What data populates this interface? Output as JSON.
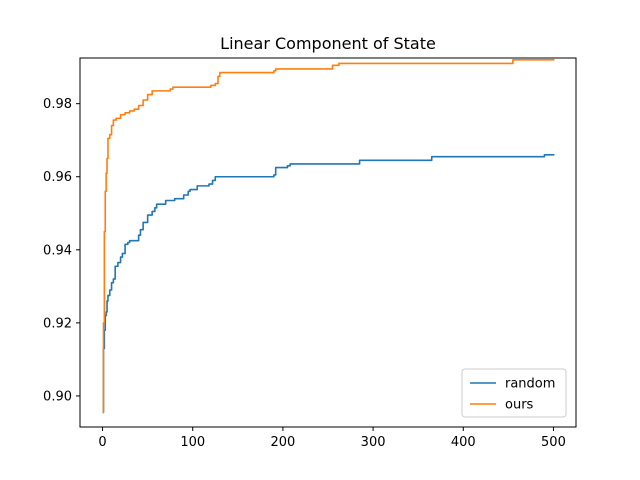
{
  "chart_data": {
    "type": "line",
    "title": "Linear Component of State",
    "xlabel": "",
    "ylabel": "",
    "xlim": [
      -25,
      525
    ],
    "ylim": [
      0.8915,
      0.9925
    ],
    "xticks": [
      0,
      100,
      200,
      300,
      400,
      500
    ],
    "yticks": [
      0.9,
      0.92,
      0.94,
      0.96,
      0.98
    ],
    "xtick_labels": [
      "0",
      "100",
      "200",
      "300",
      "400",
      "500"
    ],
    "ytick_labels": [
      "0.90",
      "0.92",
      "0.94",
      "0.96",
      "0.98"
    ],
    "grid": false,
    "legend_position": "lower-right",
    "series": [
      {
        "name": "random",
        "color": "#1f77b4",
        "points": [
          [
            0,
            0.8955
          ],
          [
            1,
            0.913
          ],
          [
            2,
            0.918
          ],
          [
            3,
            0.922
          ],
          [
            4,
            0.923
          ],
          [
            5,
            0.926
          ],
          [
            6,
            0.9275
          ],
          [
            8,
            0.929
          ],
          [
            10,
            0.931
          ],
          [
            12,
            0.932
          ],
          [
            14,
            0.9355
          ],
          [
            17,
            0.9365
          ],
          [
            20,
            0.938
          ],
          [
            22,
            0.939
          ],
          [
            25,
            0.9415
          ],
          [
            28,
            0.942
          ],
          [
            30,
            0.9425
          ],
          [
            40,
            0.944
          ],
          [
            42,
            0.9455
          ],
          [
            45,
            0.9475
          ],
          [
            50,
            0.9495
          ],
          [
            55,
            0.9505
          ],
          [
            58,
            0.9515
          ],
          [
            60,
            0.9525
          ],
          [
            70,
            0.9535
          ],
          [
            80,
            0.954
          ],
          [
            90,
            0.955
          ],
          [
            95,
            0.956
          ],
          [
            97,
            0.9565
          ],
          [
            105,
            0.9575
          ],
          [
            118,
            0.958
          ],
          [
            122,
            0.959
          ],
          [
            125,
            0.96
          ],
          [
            190,
            0.9605
          ],
          [
            192,
            0.9625
          ],
          [
            205,
            0.963
          ],
          [
            208,
            0.9635
          ],
          [
            285,
            0.9645
          ],
          [
            365,
            0.9655
          ],
          [
            490,
            0.966
          ],
          [
            501,
            0.966
          ]
        ]
      },
      {
        "name": "ours",
        "color": "#ff7f0e",
        "points": [
          [
            0,
            0.8955
          ],
          [
            1,
            0.92
          ],
          [
            2,
            0.945
          ],
          [
            3,
            0.956
          ],
          [
            4,
            0.961
          ],
          [
            5,
            0.965
          ],
          [
            6,
            0.9705
          ],
          [
            8,
            0.9715
          ],
          [
            10,
            0.974
          ],
          [
            12,
            0.9755
          ],
          [
            15,
            0.976
          ],
          [
            20,
            0.977
          ],
          [
            25,
            0.9775
          ],
          [
            30,
            0.978
          ],
          [
            35,
            0.9785
          ],
          [
            40,
            0.9795
          ],
          [
            45,
            0.981
          ],
          [
            50,
            0.9825
          ],
          [
            55,
            0.9835
          ],
          [
            75,
            0.984
          ],
          [
            78,
            0.9845
          ],
          [
            120,
            0.985
          ],
          [
            125,
            0.9855
          ],
          [
            128,
            0.9875
          ],
          [
            130,
            0.9885
          ],
          [
            190,
            0.989
          ],
          [
            192,
            0.9895
          ],
          [
            255,
            0.9905
          ],
          [
            262,
            0.991
          ],
          [
            455,
            0.992
          ],
          [
            501,
            0.992
          ]
        ]
      }
    ]
  }
}
